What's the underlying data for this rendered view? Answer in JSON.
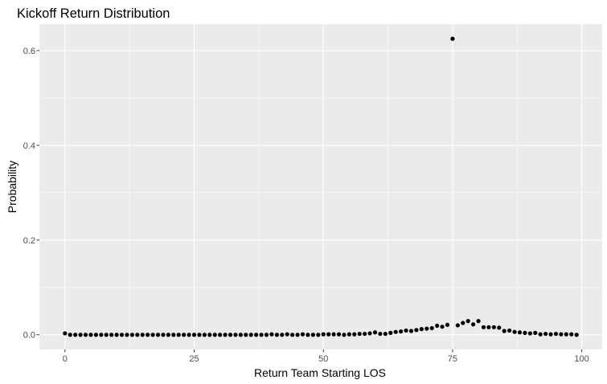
{
  "chart_data": {
    "type": "scatter",
    "title": "Kickoff Return Distribution",
    "xlabel": "Return Team Starting LOS",
    "ylabel": "Probability",
    "xlim": [
      -4.95,
      103.95
    ],
    "ylim": [
      -0.031,
      0.656
    ],
    "x_ticks": [
      0,
      25,
      50,
      75,
      100
    ],
    "x_tick_labels": [
      "0",
      "25",
      "50",
      "75",
      "100"
    ],
    "y_ticks": [
      0.0,
      0.2,
      0.4,
      0.6
    ],
    "y_tick_labels": [
      "0.0",
      "0.2",
      "0.4",
      "0.6"
    ],
    "grid": true,
    "legend": "none",
    "colors": {
      "panel": "#ebebeb",
      "grid": "#ffffff",
      "point": "#000000"
    },
    "x": [
      0,
      1,
      2,
      3,
      4,
      5,
      6,
      7,
      8,
      9,
      10,
      11,
      12,
      13,
      14,
      15,
      16,
      17,
      18,
      19,
      20,
      21,
      22,
      23,
      24,
      25,
      26,
      27,
      28,
      29,
      30,
      31,
      32,
      33,
      34,
      35,
      36,
      37,
      38,
      39,
      40,
      41,
      42,
      43,
      44,
      45,
      46,
      47,
      48,
      49,
      50,
      51,
      52,
      53,
      54,
      55,
      56,
      57,
      58,
      59,
      60,
      61,
      62,
      63,
      64,
      65,
      66,
      67,
      68,
      69,
      70,
      71,
      72,
      73,
      74,
      75,
      76,
      77,
      78,
      79,
      80,
      81,
      82,
      83,
      84,
      85,
      86,
      87,
      88,
      89,
      90,
      91,
      92,
      93,
      94,
      95,
      96,
      97,
      98,
      99
    ],
    "y": [
      0.003,
      0.0,
      0.0,
      0.0,
      0.0,
      0.0,
      0.0,
      0.0,
      0.0,
      0.0,
      0.0,
      0.0,
      0.0,
      0.0,
      0.0,
      0.0,
      0.0,
      0.0,
      0.0,
      0.0,
      0.0,
      0.0,
      0.0,
      0.0,
      0.0,
      0.0,
      0.0,
      0.0,
      0.0,
      0.0,
      0.0,
      0.0,
      0.0,
      0.0,
      0.0,
      0.0,
      0.0,
      0.0,
      0.0,
      0.0,
      0.001,
      0.0,
      0.0,
      0.001,
      0.0,
      0.0,
      0.001,
      0.0,
      0.0,
      0.0,
      0.001,
      0.001,
      0.001,
      0.001,
      0.0,
      0.001,
      0.001,
      0.002,
      0.002,
      0.003,
      0.005,
      0.002,
      0.002,
      0.004,
      0.006,
      0.007,
      0.009,
      0.008,
      0.01,
      0.012,
      0.013,
      0.014,
      0.019,
      0.017,
      0.021,
      0.625,
      0.02,
      0.025,
      0.029,
      0.022,
      0.029,
      0.016,
      0.016,
      0.016,
      0.015,
      0.008,
      0.009,
      0.006,
      0.005,
      0.004,
      0.003,
      0.004,
      0.001,
      0.002,
      0.001,
      0.002,
      0.001,
      0.001,
      0.001,
      0.0
    ]
  }
}
